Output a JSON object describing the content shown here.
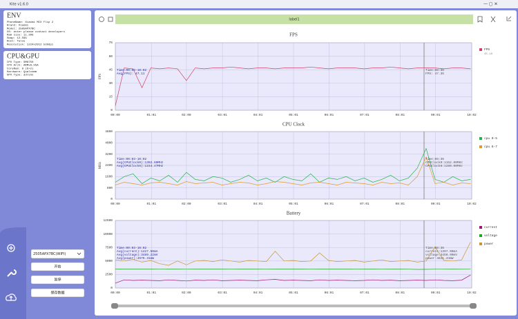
{
  "app_title": "Kite v1.6.0",
  "env": {
    "heading": "ENV",
    "lines": [
      "PhoneName: Xiaomi MIX Flip 2",
      "Brand: Xiaomi",
      "Model: 2505APX7BC",
      "OS: enter please contact developers",
      "Ram size: 11.39G",
      "Swap: 12.59G",
      "Root: false",
      "Resolution: 1224x2912 520dpi"
    ]
  },
  "cpu_gpu": {
    "heading": "CPU&GPU",
    "lines": [
      "CPU Type: SM8750",
      "CPU Arch: ARMv8_VSA",
      "CoreNum: 8 (6+2)",
      "Hardware: Qualcomm",
      "GPU Type: adreno"
    ]
  },
  "device_select": "2505APX7BC(WIFI)",
  "buttons": [
    "开始",
    "暂停",
    "保存数据"
  ],
  "label": "label1",
  "chart_data": [
    {
      "type": "line",
      "title": "FPS",
      "y_label": "FPS",
      "legend_note": "45.16",
      "xlim": [
        0,
        602
      ],
      "ylim": [
        0,
        75
      ],
      "yticks": [
        0,
        15,
        30,
        45,
        60,
        75
      ],
      "xticks": [
        {
          "value": 0,
          "label": "00:00"
        },
        {
          "value": 61,
          "label": "01:01"
        },
        {
          "value": 120,
          "label": "02:00"
        },
        {
          "value": 181,
          "label": "03:01"
        },
        {
          "value": 241,
          "label": "04:01"
        },
        {
          "value": 301,
          "label": "05:01"
        },
        {
          "value": 361,
          "label": "06:01"
        },
        {
          "value": 421,
          "label": "07:01"
        },
        {
          "value": 481,
          "label": "08:01"
        },
        {
          "value": 541,
          "label": "09:01"
        },
        {
          "value": 602,
          "label": "10:02"
        }
      ],
      "x": [
        0,
        15,
        30,
        45,
        60,
        75,
        90,
        105,
        120,
        135,
        150,
        165,
        180,
        195,
        210,
        225,
        240,
        255,
        270,
        285,
        300,
        315,
        330,
        345,
        360,
        375,
        390,
        405,
        420,
        435,
        450,
        465,
        480,
        495,
        510,
        525,
        540,
        555,
        570,
        585,
        600
      ],
      "series": [
        {
          "name": "FPS",
          "color": "#d0416a",
          "values": [
            5,
            47,
            46,
            25,
            47,
            46,
            47,
            46,
            33,
            47,
            46,
            47,
            47,
            48,
            47,
            46,
            47,
            47,
            46,
            47,
            47,
            47,
            48,
            47,
            46,
            47,
            47,
            47,
            46,
            47,
            47,
            48,
            47,
            46,
            47,
            47,
            47,
            46,
            47,
            47,
            46
          ]
        }
      ],
      "annotations": [
        [
          "Time:00:03-10:02",
          "Avg(FPS): 47.11"
        ],
        [
          "Time:08:36",
          "FPS: 47.35"
        ]
      ]
    },
    {
      "type": "line",
      "title": "CPU Clock",
      "y_label": "MHz",
      "xlim": [
        0,
        602
      ],
      "ylim": [
        0,
        4800
      ],
      "yticks": [
        0,
        800,
        1600,
        2400,
        3200,
        4000,
        4800
      ],
      "xticks": [
        {
          "value": 0,
          "label": "00:00"
        },
        {
          "value": 61,
          "label": "01:01"
        },
        {
          "value": 120,
          "label": "02:00"
        },
        {
          "value": 181,
          "label": "03:01"
        },
        {
          "value": 241,
          "label": "04:01"
        },
        {
          "value": 301,
          "label": "05:01"
        },
        {
          "value": 361,
          "label": "06:01"
        },
        {
          "value": 421,
          "label": "07:01"
        },
        {
          "value": 481,
          "label": "08:01"
        },
        {
          "value": 541,
          "label": "09:01"
        },
        {
          "value": 602,
          "label": "10:02"
        }
      ],
      "x": [
        0,
        15,
        30,
        45,
        60,
        75,
        90,
        105,
        120,
        135,
        150,
        165,
        180,
        195,
        210,
        225,
        240,
        255,
        270,
        285,
        300,
        315,
        330,
        345,
        360,
        375,
        390,
        405,
        420,
        435,
        450,
        465,
        480,
        495,
        510,
        525,
        540,
        555,
        570,
        585,
        600
      ],
      "series": [
        {
          "name": "cpu 0-5",
          "color": "#22b14c",
          "values": [
            1200,
            1600,
            1800,
            1100,
            1500,
            1300,
            1700,
            1200,
            1900,
            1400,
            1300,
            1600,
            1500,
            1200,
            1400,
            1700,
            1300,
            1500,
            1200,
            1600,
            1400,
            1300,
            1800,
            1200,
            1500,
            1400,
            1600,
            1300,
            1500,
            1200,
            1400,
            1700,
            1300,
            1500,
            2200,
            3600,
            1400,
            1200,
            1600,
            1300,
            1400
          ]
        },
        {
          "name": "cpu 6-7",
          "color": "#e09a2a",
          "values": [
            1000,
            1200,
            1100,
            1000,
            1150,
            1200,
            1100,
            1000,
            1250,
            1100,
            1150,
            1200,
            1000,
            1100,
            1200,
            1150,
            1000,
            1100,
            1250,
            1200,
            1100,
            1000,
            1150,
            1200,
            1100,
            1000,
            1200,
            1150,
            1100,
            1000,
            1200,
            1100,
            1150,
            1000,
            1600,
            3000,
            1100,
            1200,
            1000,
            1150,
            1100
          ]
        }
      ],
      "annotations": [
        [
          "Time:00:03-10:02",
          "Avg(CPUClock0):1392.60MHz",
          "Avg(CPUClock6):1154.47MHz"
        ],
        [
          "Time:08:36",
          "CPUClock0:1152.00MHz",
          "CPUClock6:1280.00MHz"
        ]
      ]
    },
    {
      "type": "line",
      "title": "Battery",
      "xlim": [
        0,
        602
      ],
      "ylim": [
        0,
        12500
      ],
      "yticks": [
        0,
        2500,
        5000,
        7500,
        10000,
        12500
      ],
      "xticks": [
        {
          "value": 0,
          "label": "00:00"
        },
        {
          "value": 61,
          "label": "01:01"
        },
        {
          "value": 120,
          "label": "02:00"
        },
        {
          "value": 181,
          "label": "03:01"
        },
        {
          "value": 241,
          "label": "04:01"
        },
        {
          "value": 301,
          "label": "05:01"
        },
        {
          "value": 361,
          "label": "06:01"
        },
        {
          "value": 421,
          "label": "07:01"
        },
        {
          "value": 481,
          "label": "08:01"
        },
        {
          "value": 541,
          "label": "09:01"
        },
        {
          "value": 602,
          "label": "10:02"
        }
      ],
      "x": [
        0,
        15,
        30,
        45,
        60,
        75,
        90,
        105,
        120,
        135,
        150,
        165,
        180,
        195,
        210,
        225,
        240,
        255,
        270,
        285,
        300,
        315,
        330,
        345,
        360,
        375,
        390,
        405,
        420,
        435,
        450,
        465,
        480,
        495,
        510,
        525,
        540,
        555,
        570,
        585,
        600
      ],
      "series": [
        {
          "name": "current",
          "color": "#a0137a",
          "values": [
            900,
            1500,
            1400,
            1450,
            1400,
            1350,
            1500,
            1400,
            1300,
            1450,
            1400,
            1500,
            1350,
            1400,
            1450,
            1400,
            1350,
            1500,
            1600,
            1400,
            1450,
            1400,
            1350,
            1500,
            1400,
            1450,
            1400,
            1350,
            1400,
            1500,
            1400,
            1450,
            1350,
            1400,
            1450,
            1400,
            1500,
            1400,
            1350,
            1450,
            2400
          ]
        },
        {
          "name": "voltage",
          "color": "#1ea71e",
          "values": [
            3500,
            3500,
            3490,
            3490,
            3490,
            3480,
            3490,
            3490,
            3480,
            3490,
            3490,
            3490,
            3490,
            3480,
            3490,
            3490,
            3490,
            3480,
            3490,
            3490,
            3490,
            3490,
            3480,
            3490,
            3490,
            3490,
            3490,
            3480,
            3490,
            3490,
            3480,
            3490,
            3490,
            3480,
            3450,
            3460,
            3480,
            3480,
            3490,
            3480,
            3480
          ]
        },
        {
          "name": "power",
          "color": "#c9952e",
          "values": [
            5200,
            5000,
            5300,
            4800,
            5100,
            4500,
            4200,
            5000,
            4300,
            5000,
            5100,
            4900,
            5200,
            5000,
            4800,
            5100,
            5000,
            4900,
            6800,
            5000,
            5100,
            4900,
            5000,
            6500,
            5100,
            4900,
            5000,
            5100,
            4800,
            5000,
            5200,
            4900,
            5000,
            5100,
            4800,
            5000,
            7600,
            5100,
            5000,
            5200,
            8500
          ]
        }
      ],
      "annotations": [
        [
          "Time:00:03-10:02",
          "Avg(current):1427.50mA",
          "Avg(voltage):3489.22mV",
          "Avg(power):4979.31mW"
        ],
        [
          "Time:08:36",
          "current:1397.00mA",
          "voltage:3450.00mV",
          "power:4821.44mW"
        ]
      ]
    }
  ]
}
